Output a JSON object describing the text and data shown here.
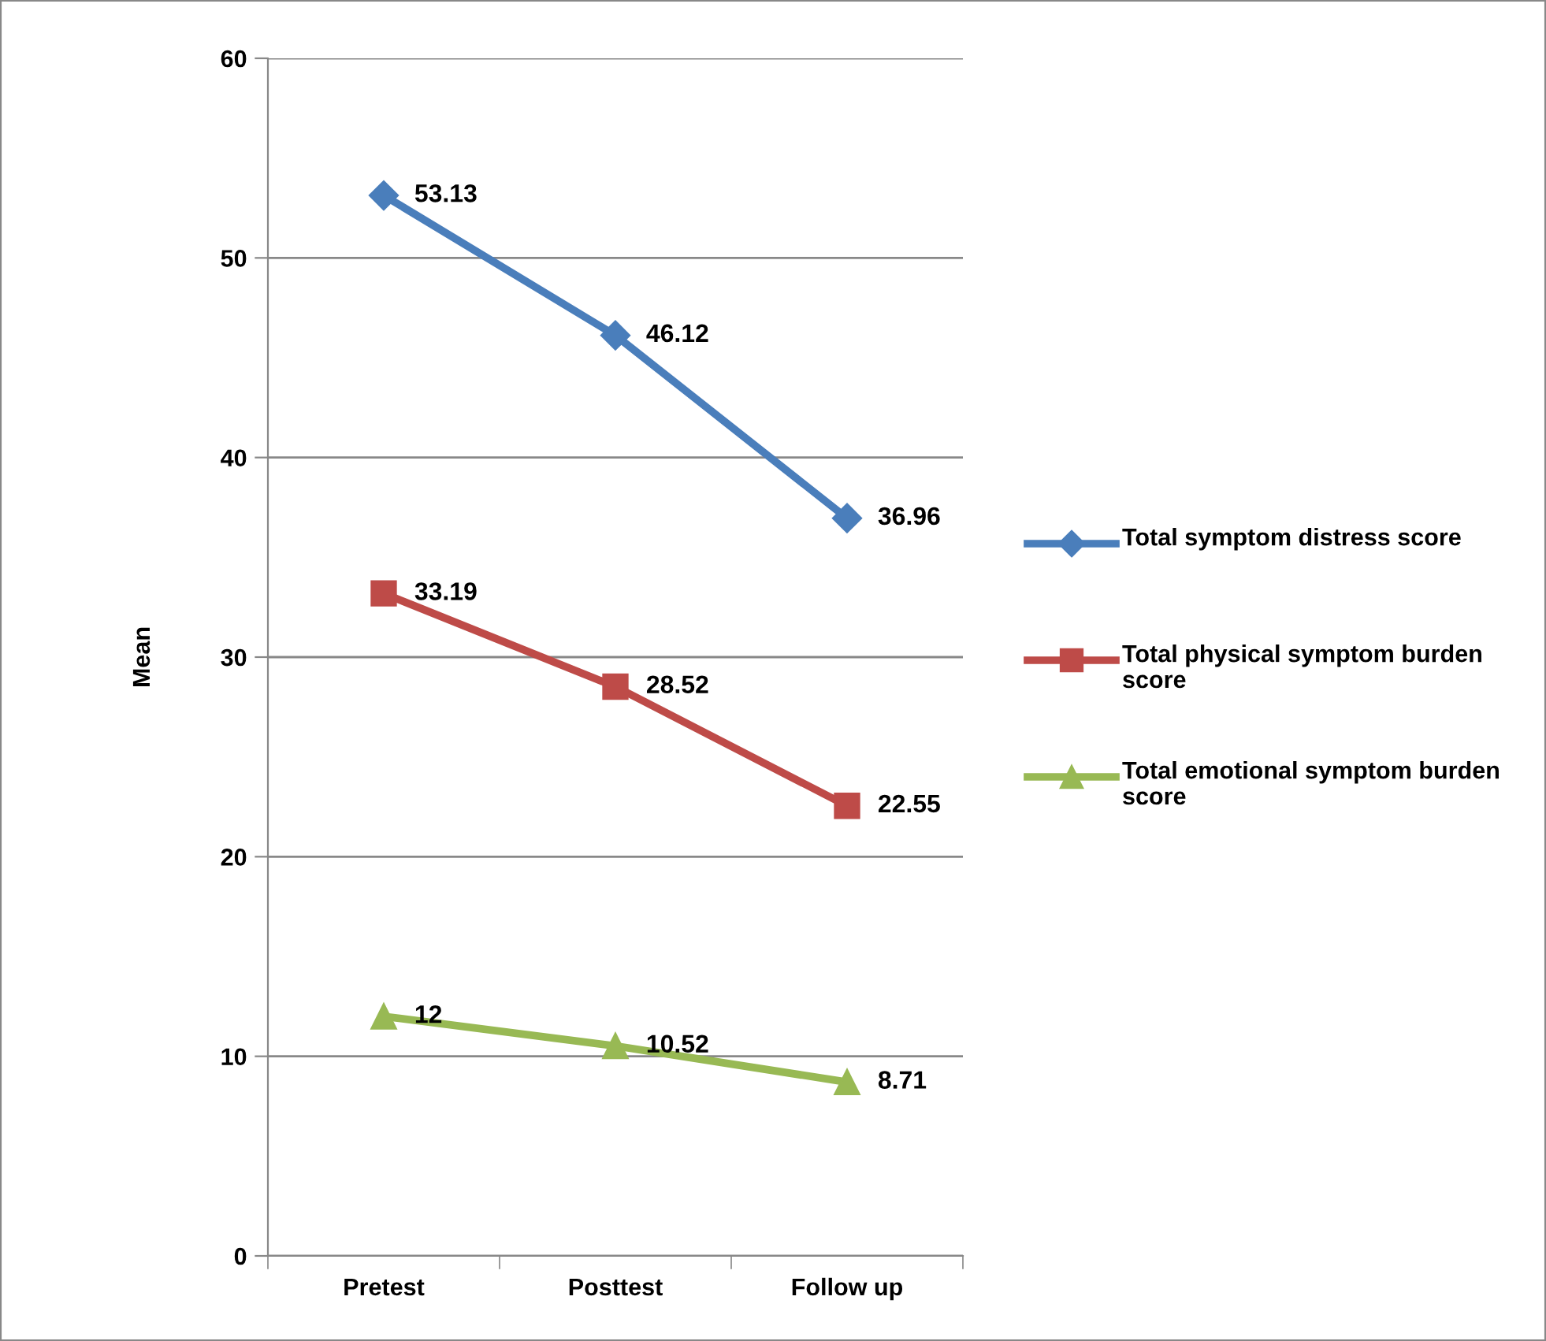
{
  "chart_data": {
    "type": "line",
    "ylabel": "Mean",
    "categories": [
      "Pretest",
      "Posttest",
      "Follow up"
    ],
    "series": [
      {
        "name": "Total symptom distress score",
        "color": "#4a7ebb",
        "marker": "diamond",
        "values": [
          53.13,
          46.12,
          36.96
        ]
      },
      {
        "name": "Total physical symptom burden score",
        "color": "#be4b48",
        "marker": "square",
        "values": [
          33.19,
          28.52,
          22.55
        ]
      },
      {
        "name": "Total emotional symptom burden score",
        "color": "#98b954",
        "marker": "triangle",
        "values": [
          12,
          10.52,
          8.71
        ]
      }
    ],
    "ylim": [
      0,
      60
    ],
    "yticks": [
      0,
      10,
      20,
      30,
      40,
      50,
      60
    ],
    "grid": "y",
    "legend": "right",
    "data_labels": true,
    "line_style": "solid"
  }
}
